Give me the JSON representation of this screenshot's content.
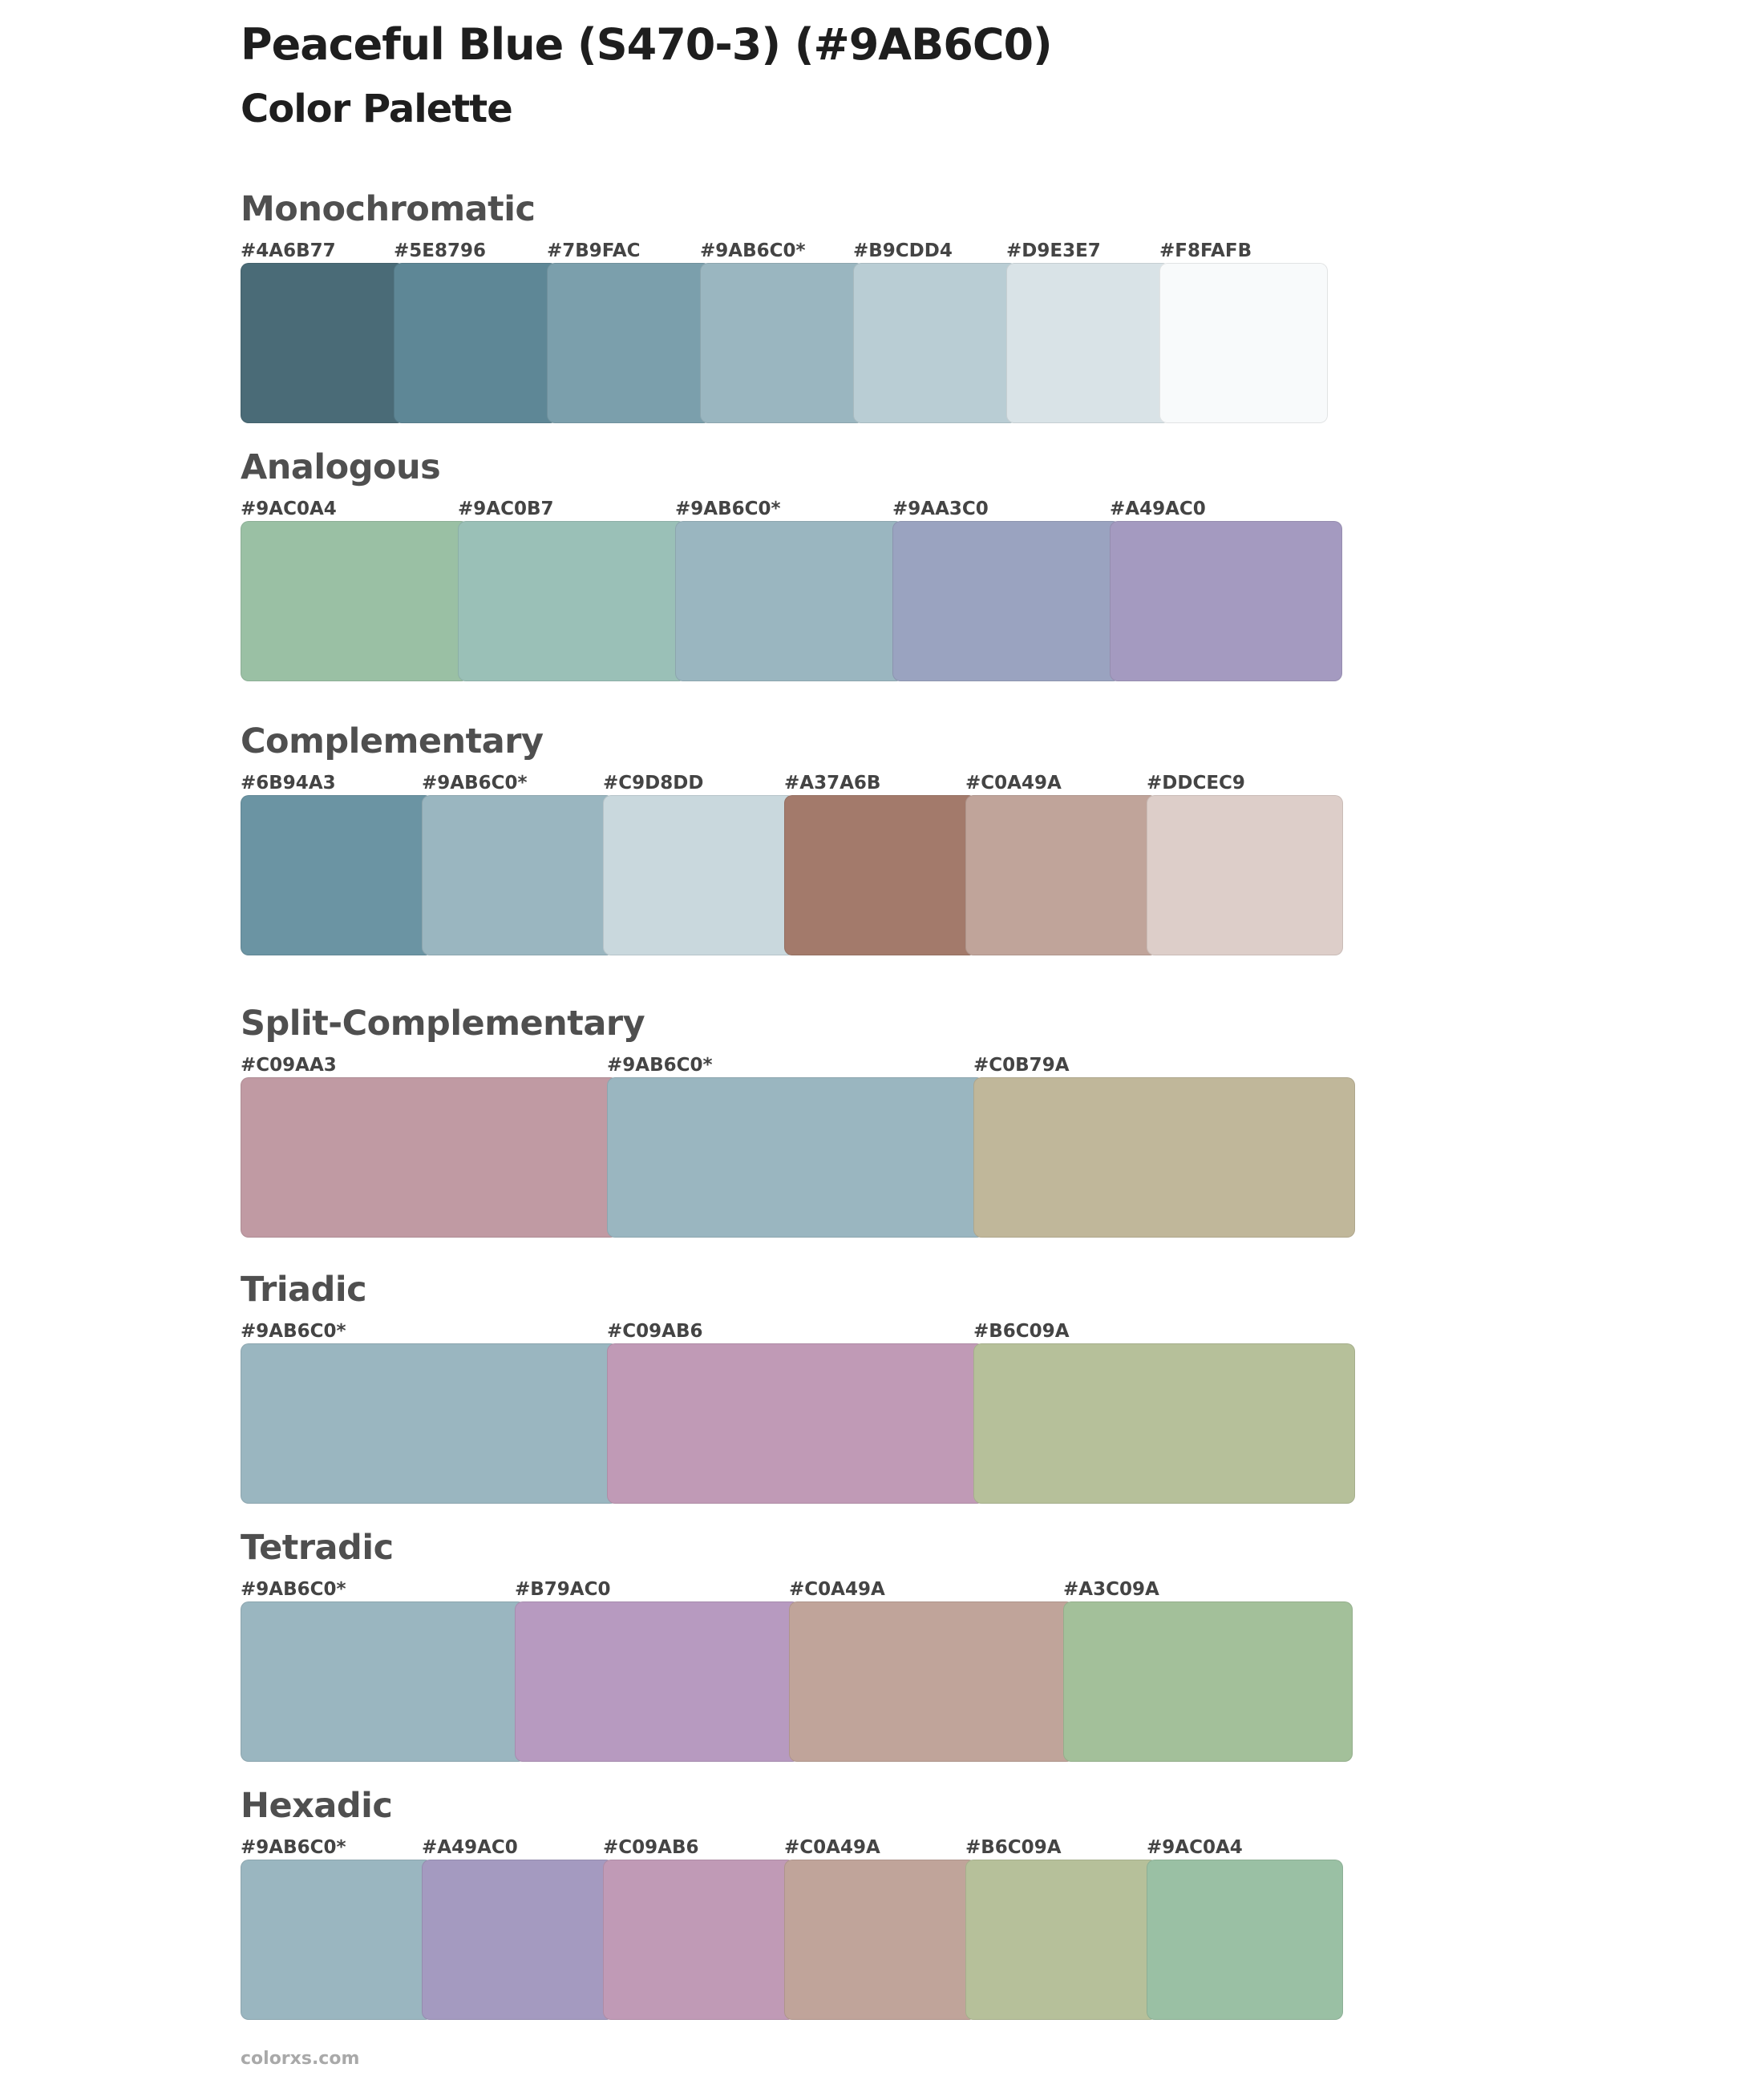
{
  "title": "Peaceful Blue (S470-3) (#9AB6C0)",
  "subtitle": "Color Palette",
  "footer": "colorxs.com",
  "sections": [
    {
      "name": "Monochromatic",
      "colors": [
        {
          "label": "#4A6B77",
          "hex": "#4A6B77"
        },
        {
          "label": "#5E8796",
          "hex": "#5E8796"
        },
        {
          "label": "#7B9FAC",
          "hex": "#7B9FAC"
        },
        {
          "label": "#9AB6C0*",
          "hex": "#9AB6C0"
        },
        {
          "label": "#B9CDD4",
          "hex": "#B9CDD4"
        },
        {
          "label": "#D9E3E7",
          "hex": "#D9E3E7"
        },
        {
          "label": "#F8FAFB",
          "hex": "#F8FAFB"
        }
      ]
    },
    {
      "name": "Analogous",
      "colors": [
        {
          "label": "#9AC0A4",
          "hex": "#9AC0A4"
        },
        {
          "label": "#9AC0B7",
          "hex": "#9AC0B7"
        },
        {
          "label": "#9AB6C0*",
          "hex": "#9AB6C0"
        },
        {
          "label": "#9AA3C0",
          "hex": "#9AA3C0"
        },
        {
          "label": "#A49AC0",
          "hex": "#A49AC0"
        }
      ]
    },
    {
      "name": "Complementary",
      "colors": [
        {
          "label": "#6B94A3",
          "hex": "#6B94A3"
        },
        {
          "label": "#9AB6C0*",
          "hex": "#9AB6C0"
        },
        {
          "label": "#C9D8DD",
          "hex": "#C9D8DD"
        },
        {
          "label": "#A37A6B",
          "hex": "#A37A6B"
        },
        {
          "label": "#C0A49A",
          "hex": "#C0A49A"
        },
        {
          "label": "#DDCEC9",
          "hex": "#DDCEC9"
        }
      ]
    },
    {
      "name": "Split-Complementary",
      "colors": [
        {
          "label": "#C09AA3",
          "hex": "#C09AA3"
        },
        {
          "label": "#9AB6C0*",
          "hex": "#9AB6C0"
        },
        {
          "label": "#C0B79A",
          "hex": "#C0B79A"
        }
      ]
    },
    {
      "name": "Triadic",
      "colors": [
        {
          "label": "#9AB6C0*",
          "hex": "#9AB6C0"
        },
        {
          "label": "#C09AB6",
          "hex": "#C09AB6"
        },
        {
          "label": "#B6C09A",
          "hex": "#B6C09A"
        }
      ]
    },
    {
      "name": "Tetradic",
      "colors": [
        {
          "label": "#9AB6C0*",
          "hex": "#9AB6C0"
        },
        {
          "label": "#B79AC0",
          "hex": "#B79AC0"
        },
        {
          "label": "#C0A49A",
          "hex": "#C0A49A"
        },
        {
          "label": "#A3C09A",
          "hex": "#A3C09A"
        }
      ]
    },
    {
      "name": "Hexadic",
      "colors": [
        {
          "label": "#9AB6C0*",
          "hex": "#9AB6C0"
        },
        {
          "label": "#A49AC0",
          "hex": "#A49AC0"
        },
        {
          "label": "#C09AB6",
          "hex": "#C09AB6"
        },
        {
          "label": "#C0A49A",
          "hex": "#C0A49A"
        },
        {
          "label": "#B6C09A",
          "hex": "#B6C09A"
        },
        {
          "label": "#9AC0A4",
          "hex": "#9AC0A4"
        }
      ]
    }
  ]
}
